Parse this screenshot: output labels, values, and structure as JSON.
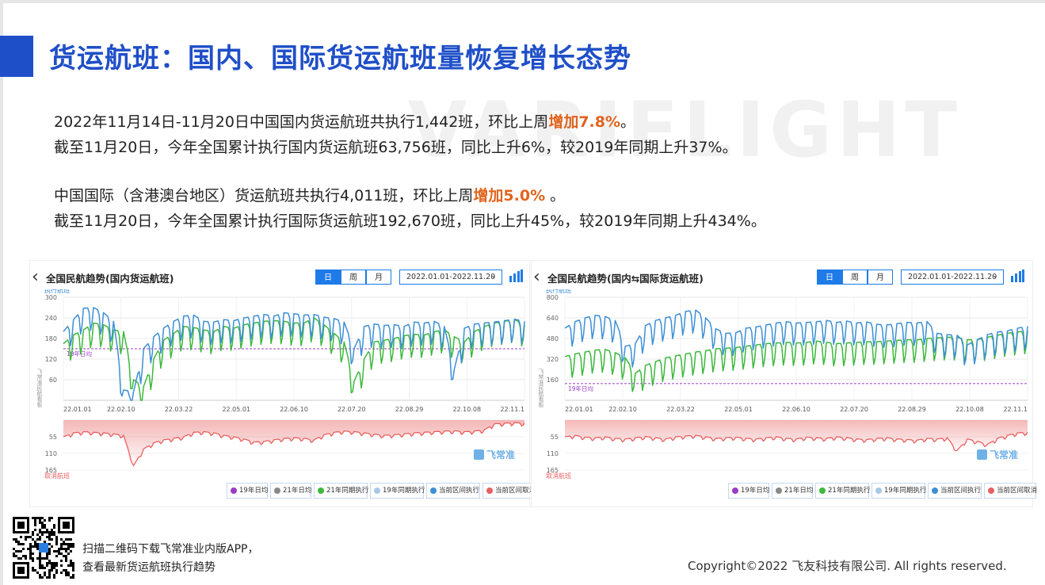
{
  "page": {
    "title": "货运航班：国内、国际货运航班量恢复增长态势",
    "watermark": "VARIFLIGHT",
    "paragraphs": [
      {
        "pre": "2022年11月14日-11月20日中国国内货运航班共执行1,442班，环比上周",
        "hl": "增加7.8%",
        "post": "。"
      },
      {
        "pre": "截至11月20日，今年全国累计执行国内货运航班63,756班，同比上升6%，较2019年同期上升37%。",
        "hl": "",
        "post": ""
      },
      {
        "pre": "中国国际（含港澳台地区）货运航班共执行4,011班，环比上周",
        "hl": "增加5.0%",
        "post": " 。"
      },
      {
        "pre": "截至11月20日，今年全国累计执行国际货运航班192,670班，同比上升45%，较2019年同期上升434%。",
        "hl": "",
        "post": ""
      }
    ],
    "footer": {
      "line1": "扫描二维码下载飞常准业内版APP，",
      "line2": "查看最新货运航班执行趋势",
      "copyright": "Copyright©2022 飞友科技有限公司. All rights reserved."
    }
  },
  "colors": {
    "accent": "#1f4fc8",
    "highlight": "#e0641e",
    "current": "#3d8fd6",
    "year21": "#3cb83c",
    "avg19": "#9b3cc4",
    "cancel": "#e86060",
    "toggle": "#1e7be8"
  },
  "ui": {
    "back_glyph": "‹",
    "seg_day": "日",
    "seg_week": "周",
    "seg_month": "月",
    "date_range": "2022.01.01-2022.11.20",
    "dropdown_glyph": "⌄",
    "brand_watermark": "飞常准",
    "axis_exec": "执行航班",
    "axis_cancel": "取消航班",
    "side_text": "飞常准民航看板",
    "avg_label": "19年日均",
    "legend": [
      "19年日均",
      "21年日均",
      "21年同期执行",
      "19年同期执行",
      "当前区间执行",
      "当前区间取消"
    ]
  },
  "chart_data": [
    {
      "type": "line",
      "title": "全国民航趋势(国内货运航班)",
      "x_ticks": [
        "22.01.01",
        "22.02.10",
        "22.03.22",
        "22.05.01",
        "22.06.10",
        "22.07.20",
        "22.08.29",
        "22.10.08",
        "22.11.1"
      ],
      "y_ticks": [
        300,
        240,
        180,
        120,
        60
      ],
      "ylim": [
        0,
        300
      ],
      "cancel_ticks": [
        55,
        110,
        165
      ],
      "cancel_ylim": [
        0,
        165
      ],
      "avg_2019": 150,
      "series": [
        {
          "name": "当前区间执行",
          "color": "#3d8fd6",
          "x": [
            0,
            7,
            14,
            21,
            28,
            35,
            42,
            49,
            56,
            63,
            70,
            77,
            84,
            91,
            98,
            105,
            112,
            119,
            126,
            133,
            140,
            147,
            154,
            161,
            168,
            175,
            182,
            189,
            196,
            203,
            210,
            217,
            224,
            231,
            238,
            245,
            252,
            259,
            266,
            273,
            280,
            287,
            294,
            301,
            308,
            315,
            322
          ],
          "values": [
            200,
            235,
            268,
            270,
            255,
            230,
            30,
            25,
            150,
            185,
            210,
            230,
            245,
            248,
            230,
            228,
            235,
            232,
            240,
            245,
            250,
            245,
            255,
            252,
            248,
            250,
            242,
            238,
            228,
            150,
            215,
            222,
            218,
            220,
            215,
            228,
            225,
            230,
            215,
            90,
            210,
            222,
            225,
            228,
            232,
            236,
            230
          ]
        },
        {
          "name": "21年同期执行",
          "color": "#3cb83c",
          "x": [
            0,
            7,
            14,
            21,
            28,
            35,
            42,
            49,
            56,
            63,
            70,
            77,
            84,
            91,
            98,
            105,
            112,
            119,
            126,
            133,
            140,
            147,
            154,
            161,
            168,
            175,
            182,
            189,
            196,
            203,
            210,
            217,
            224,
            231,
            238,
            245,
            252,
            259,
            266,
            273,
            280,
            287,
            294,
            301,
            308,
            315,
            322
          ],
          "values": [
            165,
            190,
            205,
            225,
            220,
            205,
            200,
            60,
            40,
            120,
            175,
            195,
            215,
            212,
            205,
            200,
            215,
            210,
            220,
            225,
            230,
            232,
            230,
            225,
            225,
            240,
            220,
            195,
            170,
            55,
            120,
            170,
            175,
            180,
            188,
            192,
            190,
            200,
            205,
            185,
            170,
            200,
            215,
            225,
            230,
            235,
            220
          ]
        }
      ],
      "cancel_series": {
        "name": "当前区间取消",
        "color": "#e86060",
        "x": [
          0,
          7,
          14,
          21,
          28,
          35,
          42,
          49,
          56,
          63,
          70,
          77,
          84,
          91,
          98,
          105,
          112,
          119,
          126,
          133,
          140,
          147,
          154,
          161,
          168,
          175,
          182,
          189,
          196,
          203,
          210,
          217,
          224,
          231,
          238,
          245,
          252,
          259,
          266,
          273,
          280,
          287,
          294,
          301,
          308,
          315,
          322
        ],
        "values": [
          55,
          42,
          38,
          40,
          42,
          45,
          50,
          150,
          95,
          75,
          65,
          60,
          55,
          40,
          38,
          42,
          50,
          55,
          62,
          72,
          70,
          65,
          60,
          58,
          60,
          65,
          48,
          40,
          36,
          38,
          42,
          46,
          50,
          48,
          45,
          42,
          40,
          38,
          36,
          35,
          38,
          36,
          32,
          12,
          10,
          8,
          10
        ]
      }
    },
    {
      "type": "line",
      "title": "全国民航趋势(国内⇆国际货运航班)",
      "x_ticks": [
        "22.01.01",
        "22.02.10",
        "22.03.22",
        "22.05.01",
        "22.06.10",
        "22.07.20",
        "22.08.29",
        "22.10.08",
        "22.11.1"
      ],
      "y_ticks": [
        800,
        640,
        480,
        320,
        160
      ],
      "ylim": [
        0,
        800
      ],
      "cancel_ticks": [
        55,
        110,
        165
      ],
      "cancel_ylim": [
        0,
        165
      ],
      "avg_2019": 130,
      "series": [
        {
          "name": "当前区间执行",
          "color": "#3d8fd6",
          "x": [
            0,
            7,
            14,
            21,
            28,
            35,
            42,
            49,
            56,
            63,
            70,
            77,
            84,
            91,
            98,
            105,
            112,
            119,
            126,
            133,
            140,
            147,
            154,
            161,
            168,
            175,
            182,
            189,
            196,
            203,
            210,
            217,
            224,
            231,
            238,
            245,
            252,
            259,
            266,
            273,
            280,
            287,
            294,
            301,
            308,
            315,
            322
          ],
          "values": [
            560,
            610,
            640,
            660,
            650,
            620,
            420,
            440,
            580,
            620,
            640,
            660,
            690,
            700,
            640,
            555,
            520,
            525,
            560,
            570,
            585,
            600,
            610,
            600,
            605,
            610,
            620,
            605,
            615,
            600,
            608,
            590,
            585,
            595,
            605,
            600,
            612,
            520,
            510,
            505,
            430,
            470,
            510,
            530,
            540,
            560,
            575
          ]
        },
        {
          "name": "21年同期执行",
          "color": "#3cb83c",
          "x": [
            0,
            7,
            14,
            21,
            28,
            35,
            42,
            49,
            56,
            63,
            70,
            77,
            84,
            91,
            98,
            105,
            112,
            119,
            126,
            133,
            140,
            147,
            154,
            161,
            168,
            175,
            182,
            189,
            196,
            203,
            210,
            217,
            224,
            231,
            238,
            245,
            252,
            259,
            266,
            273,
            280,
            287,
            294,
            301,
            308,
            315,
            322
          ],
          "values": [
            340,
            360,
            375,
            390,
            395,
            370,
            330,
            210,
            270,
            300,
            330,
            345,
            360,
            375,
            385,
            400,
            405,
            410,
            420,
            430,
            440,
            445,
            450,
            445,
            450,
            460,
            450,
            440,
            445,
            450,
            455,
            455,
            460,
            465,
            470,
            470,
            480,
            485,
            490,
            488,
            470,
            470,
            490,
            505,
            520,
            530,
            540
          ]
        }
      ],
      "cancel_series": {
        "name": "当前区间取消",
        "color": "#e86060",
        "x": [
          0,
          7,
          14,
          21,
          28,
          35,
          42,
          49,
          56,
          63,
          70,
          77,
          84,
          91,
          98,
          105,
          112,
          119,
          126,
          133,
          140,
          147,
          154,
          161,
          168,
          175,
          182,
          189,
          196,
          203,
          210,
          217,
          224,
          231,
          238,
          245,
          252,
          259,
          266,
          273,
          280,
          287,
          294,
          301,
          308,
          315,
          322
        ],
        "values": [
          55,
          50,
          56,
          58,
          55,
          60,
          62,
          58,
          54,
          58,
          62,
          55,
          52,
          50,
          55,
          60,
          58,
          56,
          60,
          62,
          58,
          55,
          60,
          62,
          56,
          58,
          60,
          55,
          58,
          62,
          64,
          60,
          58,
          62,
          64,
          66,
          60,
          62,
          58,
          100,
          62,
          70,
          80,
          60,
          50,
          42,
          40
        ]
      }
    }
  ]
}
